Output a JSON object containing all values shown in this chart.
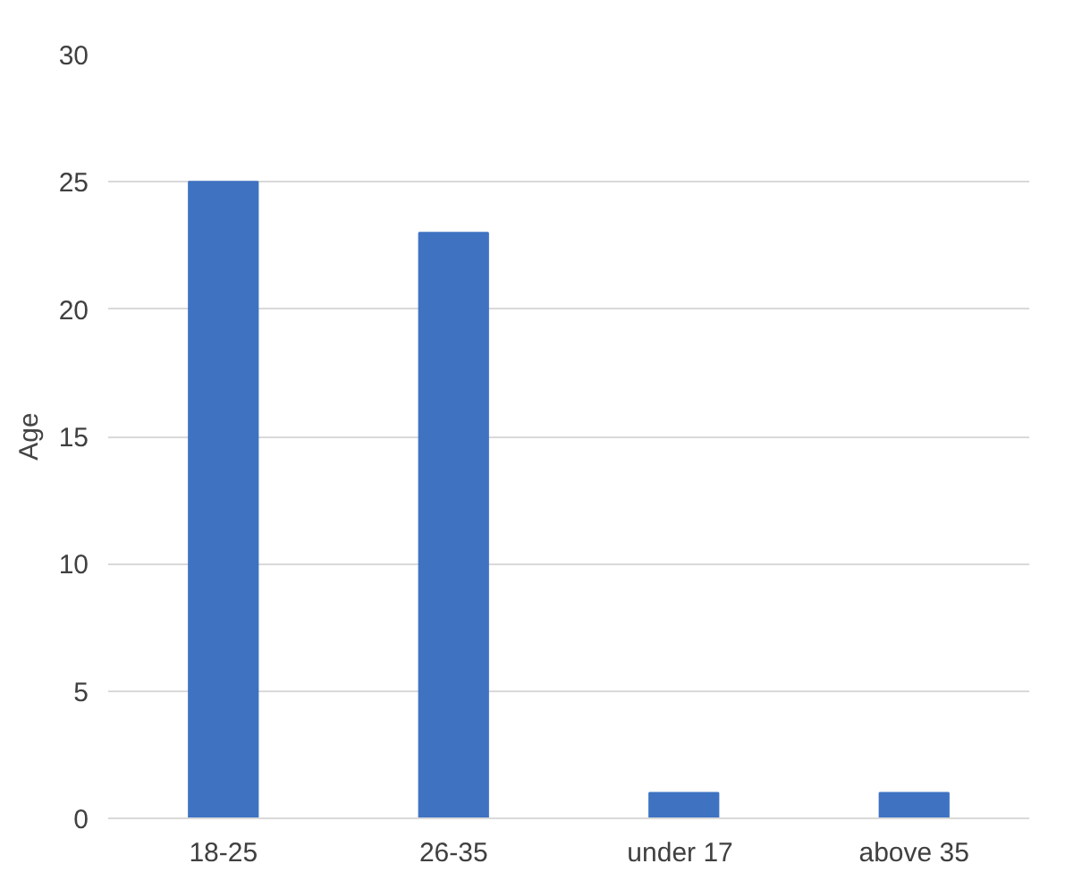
{
  "chart_data": {
    "type": "bar",
    "ylabel": "Age",
    "categories": [
      "18-25",
      "26-35",
      "under  17",
      "above 35"
    ],
    "values": [
      25,
      23,
      1,
      1
    ],
    "color": "#3f73c2",
    "ylim": [
      0,
      30
    ],
    "yticks": [
      0,
      5,
      10,
      15,
      20,
      25,
      30
    ],
    "grid": "y"
  }
}
